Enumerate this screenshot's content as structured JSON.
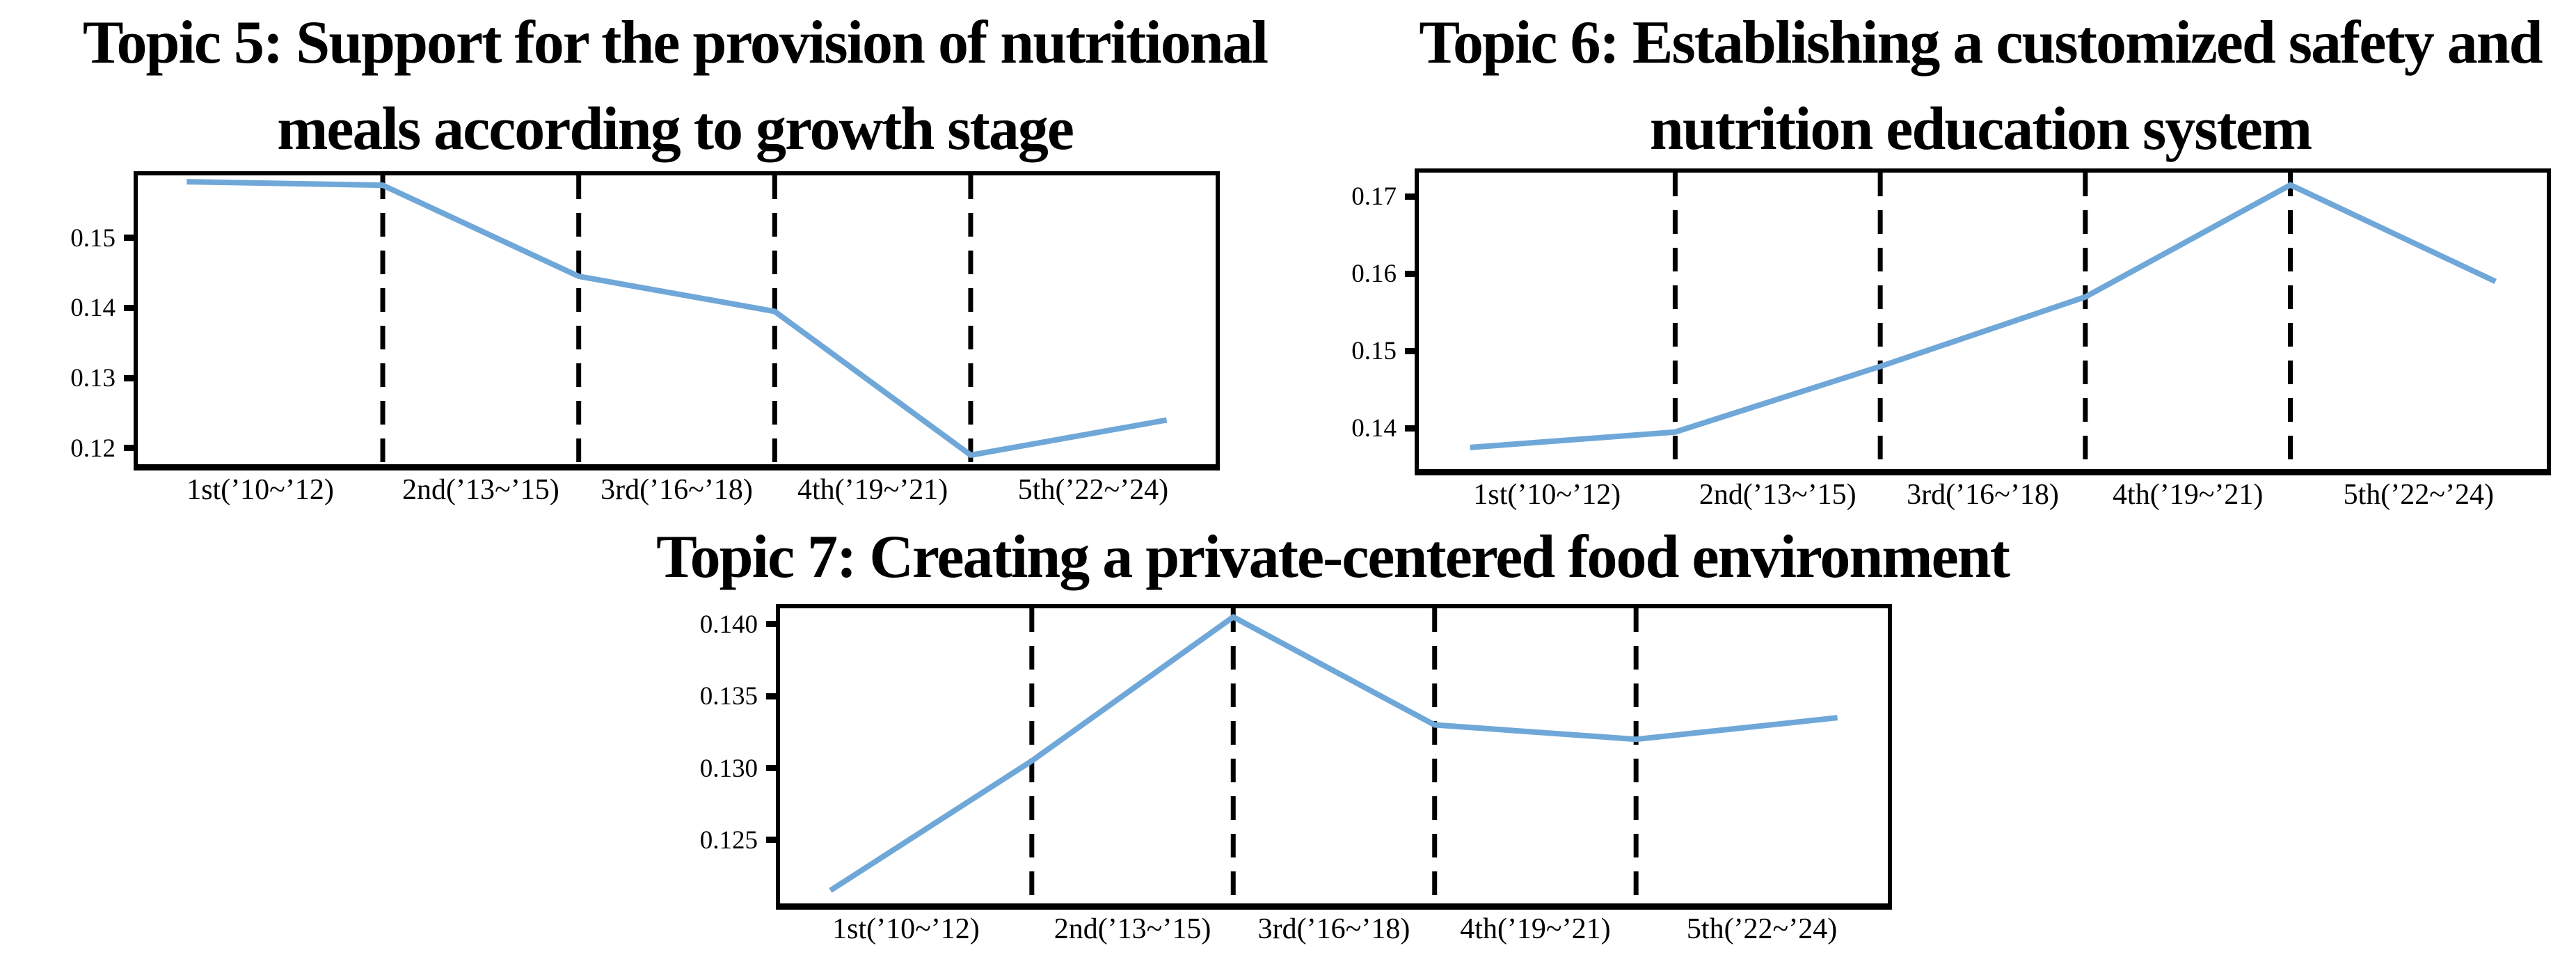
{
  "page": {
    "background": "#ffffff",
    "figure_type": "three line charts of topic proportion trends by school meal plan period"
  },
  "chart_data": [
    {
      "type": "line",
      "title": "Topic 5: Support for the provision of nutritional meals according to growth stage",
      "title_lines": [
        "Topic 5: Support for the provision of nutritional",
        "meals according to growth stage"
      ],
      "x": [
        0,
        1,
        2,
        3,
        4,
        5
      ],
      "values": [
        0.158,
        0.1575,
        0.1445,
        0.1395,
        0.119,
        0.124
      ],
      "xlim": [
        -0.25,
        5.25
      ],
      "ylim": [
        0.1177,
        0.1589
      ],
      "y_tick_values": [
        0.15,
        0.14,
        0.13,
        0.12
      ],
      "y_tick_labels": [
        "0.15",
        "0.14",
        "0.13",
        "0.12"
      ],
      "period_labels": [
        "1st(’10~’12)",
        "2nd(’13~’15)",
        "3rd(’16~’18)",
        "4th(’19~’21)",
        "5th(’22~’24)"
      ],
      "period_label_centers_x": [
        0.375,
        1.5,
        2.5,
        3.5,
        4.625
      ],
      "dashed_lines_x": [
        1,
        2,
        3,
        4
      ],
      "line_color": "#6fa8d8",
      "divider_color": "#000000",
      "grid": false,
      "legend": false
    },
    {
      "type": "line",
      "title": "Topic 6: Establishing a customized safety and nutrition education system",
      "title_lines": [
        "Topic 6: Establishing a customized safety and",
        "nutrition education system"
      ],
      "x": [
        0,
        1,
        2,
        3,
        4,
        5
      ],
      "values": [
        0.1375,
        0.1395,
        0.148,
        0.157,
        0.1715,
        0.159
      ],
      "xlim": [
        -0.25,
        5.25
      ],
      "ylim": [
        0.1347,
        0.1731
      ],
      "y_tick_values": [
        0.17,
        0.16,
        0.15,
        0.14
      ],
      "y_tick_labels": [
        "0.17",
        "0.16",
        "0.15",
        "0.14"
      ],
      "period_labels": [
        "1st(’10~’12)",
        "2nd(’13~’15)",
        "3rd(’16~’18)",
        "4th(’19~’21)",
        "5th(’22~’24)"
      ],
      "period_label_centers_x": [
        0.375,
        1.5,
        2.5,
        3.5,
        4.625
      ],
      "dashed_lines_x": [
        1,
        2,
        3,
        4
      ],
      "line_color": "#6fa8d8",
      "divider_color": "#000000",
      "grid": false,
      "legend": false
    },
    {
      "type": "line",
      "title": "Topic 7: Creating a private-centered food environment",
      "title_lines": [
        "Topic 7: Creating a private-centered food environment"
      ],
      "x": [
        0,
        1,
        2,
        3,
        4,
        5
      ],
      "values": [
        0.1215,
        0.1305,
        0.1405,
        0.133,
        0.132,
        0.1335
      ],
      "xlim": [
        -0.25,
        5.25
      ],
      "ylim": [
        0.1206,
        0.1411
      ],
      "y_tick_values": [
        0.14,
        0.135,
        0.13,
        0.125
      ],
      "y_tick_labels": [
        "0.140",
        "0.135",
        "0.130",
        "0.125"
      ],
      "period_labels": [
        "1st(’10~’12)",
        "2nd(’13~’15)",
        "3rd(’16~’18)",
        "4th(’19~’21)",
        "5th(’22~’24)"
      ],
      "period_label_centers_x": [
        0.375,
        1.5,
        2.5,
        3.5,
        4.625
      ],
      "dashed_lines_x": [
        1,
        2,
        3,
        4
      ],
      "line_color": "#6fa8d8",
      "divider_color": "#000000",
      "grid": false,
      "legend": false
    }
  ]
}
